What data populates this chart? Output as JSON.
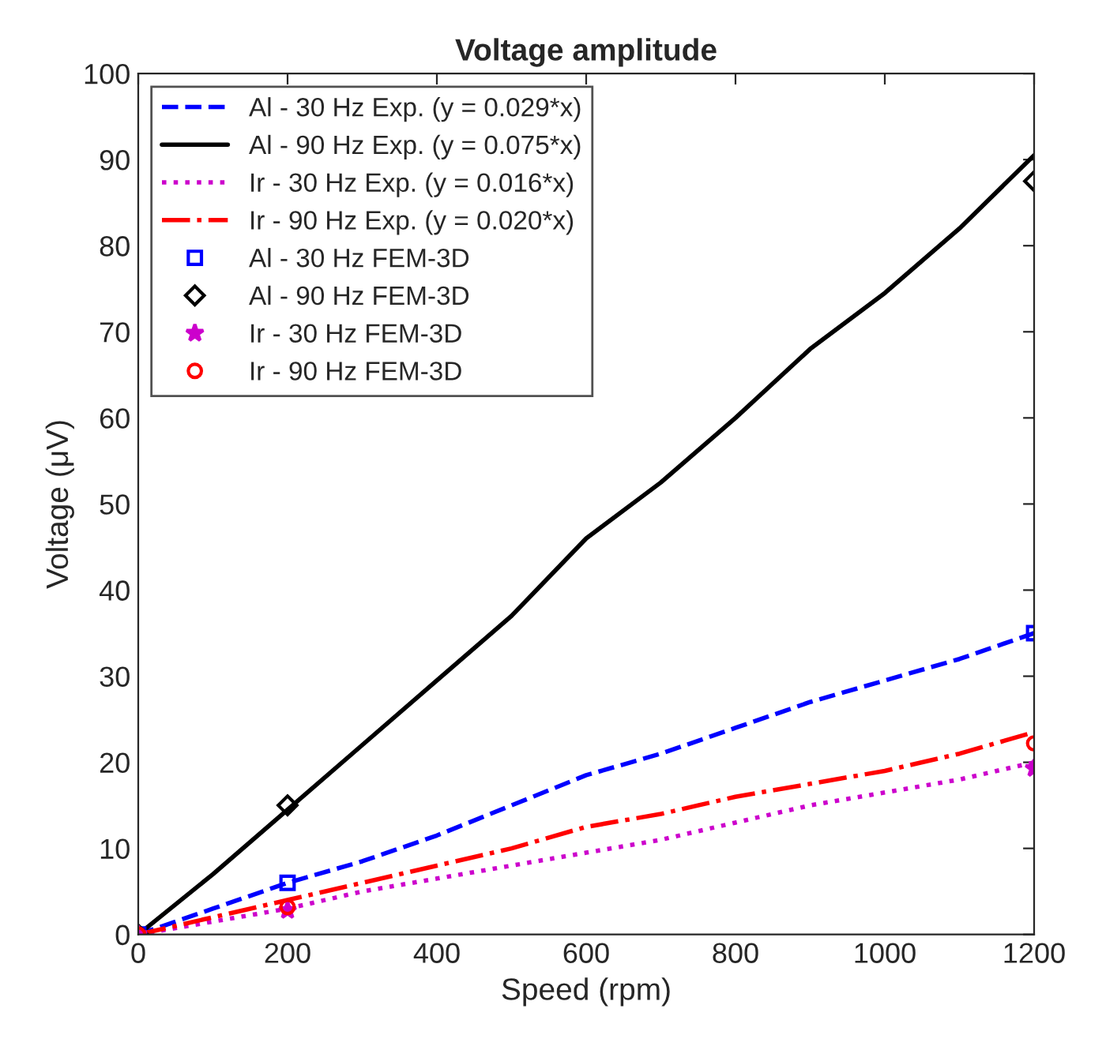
{
  "chart_data": {
    "type": "line",
    "title": "Voltage amplitude",
    "xlabel": "Speed (rpm)",
    "ylabel": "Voltage (μV)",
    "xlim": [
      0,
      1200
    ],
    "ylim": [
      0,
      100
    ],
    "xticks": [
      0,
      200,
      400,
      600,
      800,
      1000,
      1200
    ],
    "yticks": [
      0,
      10,
      20,
      30,
      40,
      50,
      60,
      70,
      80,
      90,
      100
    ],
    "grid": false,
    "legend": "top left",
    "series": [
      {
        "name": "Al - 30 Hz Exp. (y = 0.029*x)",
        "color": "#0000ff",
        "line_style": "dashed",
        "marker": "none",
        "x": [
          0,
          100,
          200,
          300,
          400,
          500,
          600,
          700,
          800,
          900,
          1000,
          1100,
          1200
        ],
        "values": [
          0,
          3,
          6,
          8.5,
          11.5,
          15,
          18.5,
          21,
          24,
          27,
          29.5,
          32,
          35
        ]
      },
      {
        "name": "Al - 90 Hz Exp. (y = 0.075*x)",
        "color": "#000000",
        "line_style": "solid",
        "marker": "none",
        "x": [
          0,
          100,
          200,
          300,
          400,
          500,
          600,
          700,
          800,
          900,
          1000,
          1100,
          1200
        ],
        "values": [
          0,
          7,
          14.5,
          22,
          29.5,
          37,
          46,
          52.5,
          60,
          68,
          74.5,
          82,
          90.5
        ]
      },
      {
        "name": "Ir - 30 Hz Exp. (y = 0.016*x)",
        "color": "#cc00cc",
        "line_style": "dotted",
        "marker": "none",
        "x": [
          0,
          100,
          200,
          300,
          400,
          500,
          600,
          700,
          800,
          900,
          1000,
          1100,
          1200
        ],
        "values": [
          0,
          1.5,
          3,
          5,
          6.5,
          8,
          9.5,
          11,
          13,
          15,
          16.5,
          18,
          20
        ]
      },
      {
        "name": "Ir - 90 Hz Exp. (y = 0.020*x)",
        "color": "#ff0000",
        "line_style": "dashdot",
        "marker": "none",
        "x": [
          0,
          100,
          200,
          300,
          400,
          500,
          600,
          700,
          800,
          900,
          1000,
          1100,
          1200
        ],
        "values": [
          0,
          2,
          4,
          6,
          8,
          10,
          12.5,
          14,
          16,
          17.5,
          19,
          21,
          23.5
        ]
      },
      {
        "name": "Al - 30 Hz FEM-3D",
        "type": "scatter",
        "color": "#0000ff",
        "marker": "square",
        "x": [
          0,
          200,
          1200
        ],
        "values": [
          0,
          6,
          35
        ]
      },
      {
        "name": "Al - 90 Hz FEM-3D",
        "type": "scatter",
        "color": "#000000",
        "marker": "diamond",
        "x": [
          0,
          200,
          1200
        ],
        "values": [
          0,
          15,
          87.5
        ]
      },
      {
        "name": "Ir - 30 Hz FEM-3D",
        "type": "scatter",
        "color": "#cc00cc",
        "marker": "star",
        "x": [
          0,
          200,
          1200
        ],
        "values": [
          0,
          2.8,
          19.3
        ]
      },
      {
        "name": "Ir - 90 Hz FEM-3D",
        "type": "scatter",
        "color": "#ff0000",
        "marker": "circle",
        "x": [
          0,
          200,
          1200
        ],
        "values": [
          0,
          3.2,
          22.2
        ]
      }
    ]
  }
}
